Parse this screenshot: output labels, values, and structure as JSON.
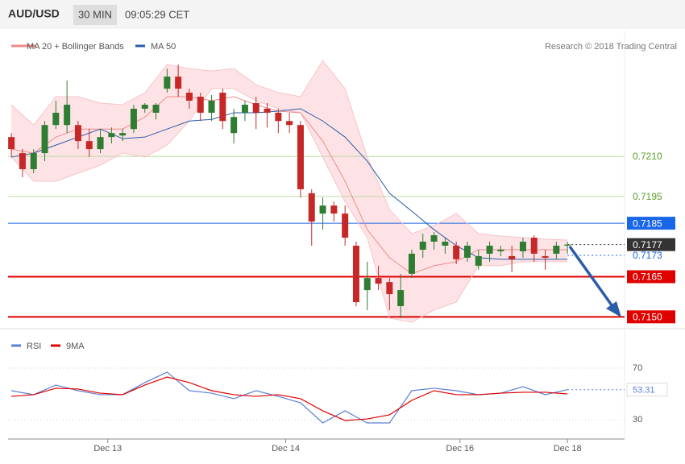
{
  "header": {
    "symbol": "AUD/USD",
    "interval": "30 MIN",
    "time": "09:05:29 CET"
  },
  "chart_data": [
    {
      "type": "candlestick",
      "attribution": "Research © 2018 Trading Central",
      "x": [
        0,
        3,
        6,
        9,
        12,
        15,
        18,
        21,
        24,
        27,
        30,
        33,
        36,
        39,
        42,
        45,
        48,
        51,
        54,
        57,
        60,
        63,
        66,
        69,
        72,
        75,
        78,
        81,
        84,
        87,
        90,
        93,
        96,
        99,
        102,
        105,
        108,
        111,
        114,
        117,
        120,
        123,
        126,
        129,
        132,
        135,
        138,
        141,
        144,
        147,
        150
      ],
      "open": [
        0.72172,
        0.72112,
        0.72052,
        0.72112,
        0.72217,
        0.72217,
        0.72217,
        0.72157,
        0.72127,
        0.72172,
        0.72178,
        0.72202,
        0.72278,
        0.72263,
        0.72353,
        0.72398,
        0.72338,
        0.72323,
        0.72263,
        0.72338,
        0.72187,
        0.72263,
        0.72299,
        0.72278,
        0.72263,
        0.72232,
        0.72217,
        0.71962,
        0.71886,
        0.71916,
        0.71886,
        0.71766,
        0.716,
        0.71645,
        0.7163,
        0.7154,
        0.71661,
        0.71751,
        0.71781,
        0.71766,
        0.71766,
        0.71721,
        0.71691,
        0.71736,
        0.71745,
        0.71727,
        0.71745,
        0.71796,
        0.71727,
        0.71736,
        0.71766
      ],
      "high": [
        0.72187,
        0.72127,
        0.72127,
        0.72232,
        0.72308,
        0.72383,
        0.72232,
        0.72202,
        0.72202,
        0.72208,
        0.72202,
        0.72293,
        0.72299,
        0.72299,
        0.72428,
        0.72443,
        0.72353,
        0.72338,
        0.72329,
        0.72353,
        0.72278,
        0.72308,
        0.72323,
        0.72299,
        0.72278,
        0.72263,
        0.72232,
        0.71977,
        0.71946,
        0.71931,
        0.71916,
        0.71781,
        0.71706,
        0.71691,
        0.71645,
        0.71661,
        0.71751,
        0.71811,
        0.71817,
        0.71796,
        0.71781,
        0.71781,
        0.71751,
        0.71781,
        0.71766,
        0.71766,
        0.71796,
        0.71805,
        0.71751,
        0.71781,
        0.71781
      ],
      "low": [
        0.72097,
        0.72022,
        0.72037,
        0.72082,
        0.72202,
        0.72187,
        0.72127,
        0.72097,
        0.72112,
        0.72148,
        0.72157,
        0.72187,
        0.72263,
        0.72238,
        0.72338,
        0.72323,
        0.72278,
        0.72232,
        0.72232,
        0.72202,
        0.72148,
        0.72232,
        0.72202,
        0.72208,
        0.72187,
        0.72187,
        0.71946,
        0.71766,
        0.71826,
        0.71856,
        0.71766,
        0.7154,
        0.71525,
        0.716,
        0.71525,
        0.71495,
        0.71645,
        0.71721,
        0.71751,
        0.71736,
        0.71697,
        0.71706,
        0.71676,
        0.71706,
        0.71727,
        0.71667,
        0.71721,
        0.71706,
        0.71676,
        0.71715,
        0.71736
      ],
      "close": [
        0.72127,
        0.72052,
        0.72112,
        0.72217,
        0.72263,
        0.72293,
        0.72157,
        0.72127,
        0.72172,
        0.72187,
        0.72187,
        0.72278,
        0.72293,
        0.72293,
        0.72398,
        0.72353,
        0.72308,
        0.72263,
        0.72308,
        0.72232,
        0.72247,
        0.72293,
        0.72263,
        0.72263,
        0.72232,
        0.72217,
        0.71977,
        0.71856,
        0.71916,
        0.71886,
        0.71796,
        0.71555,
        0.71645,
        0.71624,
        0.71585,
        0.716,
        0.71736,
        0.71781,
        0.71805,
        0.71781,
        0.71715,
        0.71766,
        0.71727,
        0.71766,
        0.71751,
        0.71715,
        0.71781,
        0.71736,
        0.71721,
        0.71766,
        0.7177
      ],
      "up_color": "#2e7d32",
      "down_color": "#c62828",
      "overlays": [
        {
          "name": "MA 20 + Bollinger Bands",
          "color": "#f08a8a",
          "band_color": "#fde3e5",
          "x": [
            0,
            6,
            12,
            18,
            24,
            30,
            36,
            42,
            48,
            54,
            60,
            66,
            72,
            78,
            84,
            90,
            96,
            102,
            108,
            114,
            120,
            126,
            132,
            138,
            144,
            150
          ],
          "values": [
            0.72127,
            0.72112,
            0.72172,
            0.72202,
            0.72202,
            0.72202,
            0.72247,
            0.72323,
            0.72323,
            0.72308,
            0.72323,
            0.72293,
            0.72269,
            0.72263,
            0.72157,
            0.72007,
            0.71826,
            0.71721,
            0.71661,
            0.71691,
            0.71706,
            0.71751,
            0.71751,
            0.71751,
            0.71751,
            0.71751
          ],
          "upper": [
            0.72293,
            0.72217,
            0.72323,
            0.72323,
            0.72299,
            0.72293,
            0.72338,
            0.72443,
            0.72428,
            0.72419,
            0.72428,
            0.72368,
            0.72338,
            0.72323,
            0.72458,
            0.72353,
            0.72097,
            0.71901,
            0.71811,
            0.71841,
            0.71886,
            0.71811,
            0.71802,
            0.71796,
            0.7179,
            0.71787
          ],
          "lower": [
            0.72097,
            0.72007,
            0.72007,
            0.72037,
            0.72067,
            0.72112,
            0.72097,
            0.72142,
            0.72232,
            0.72353,
            0.72353,
            0.72308,
            0.72278,
            0.72263,
            0.72097,
            0.71931,
            0.71796,
            0.71495,
            0.7148,
            0.71525,
            0.71555,
            0.71691,
            0.71691,
            0.71706,
            0.71706,
            0.71706
          ]
        },
        {
          "name": "MA 50",
          "color": "#2a5ca8",
          "x": [
            0,
            6,
            12,
            18,
            24,
            30,
            36,
            42,
            48,
            54,
            60,
            66,
            72,
            78,
            84,
            90,
            96,
            102,
            108,
            114,
            120,
            126,
            132,
            138,
            144,
            150
          ],
          "values": [
            0.72097,
            0.72112,
            0.72142,
            0.72172,
            0.72202,
            0.72166,
            0.72172,
            0.72202,
            0.72232,
            0.72238,
            0.72263,
            0.72263,
            0.72269,
            0.72278,
            0.72232,
            0.72172,
            0.72082,
            0.71962,
            0.71895,
            0.71826,
            0.71766,
            0.71721,
            0.71715,
            0.71715,
            0.71715,
            0.71715
          ]
        }
      ],
      "levels": [
        {
          "price": {
            "value": 0.721,
            "label": "0.7210"
          },
          "color": "#5aa02c",
          "style": "text",
          "line": "solid"
        },
        {
          "price": 0.7195,
          "color": "#5aa02c",
          "style": "text",
          "line": "solid"
        },
        {
          "price": 0.7185,
          "color": "#1a66e8",
          "style": "box",
          "line": "solid"
        },
        {
          "price": 0.7177,
          "color": "#333333",
          "style": "box",
          "line": "dotted"
        },
        {
          "price": 0.7173,
          "color": "#1a66e8",
          "style": "text",
          "line": "dotted"
        },
        {
          "price": 0.7165,
          "color": "#e00000",
          "style": "box",
          "line": "solid"
        },
        {
          "price": {
            "value": 0.715,
            "label": "0.7150"
          },
          "color": "#e00000",
          "style": "box",
          "line": "solid"
        }
      ],
      "xlim": [
        -0.9,
        165.4
      ],
      "ylim": [
        0.7146,
        0.7257
      ],
      "xticks": [
        {
          "value": 26,
          "label": "Dec 13"
        },
        {
          "value": 74,
          "label": "Dec 14"
        },
        {
          "value": 121,
          "label": "Dec 16"
        },
        {
          "value": 150,
          "label": "Dec 18"
        }
      ]
    },
    {
      "type": "line",
      "x": [
        0,
        6,
        12,
        18,
        24,
        30,
        36,
        42,
        48,
        54,
        60,
        66,
        72,
        78,
        84,
        90,
        96,
        102,
        108,
        114,
        120,
        126,
        132,
        138,
        144,
        150
      ],
      "series": [
        {
          "name": "RSI",
          "color": "#5b7fd6",
          "values": [
            52.5,
            49.4,
            56.9,
            52.5,
            49.4,
            49.4,
            58.8,
            66.9,
            52.5,
            50.6,
            46.3,
            52.5,
            48.1,
            43.1,
            27.5,
            36.9,
            27.5,
            27.5,
            52.5,
            54.4,
            52.5,
            49.4,
            50.6,
            55.6,
            49.4,
            53.31
          ]
        },
        {
          "name": "9MA",
          "color": "#e00000",
          "values": [
            48.1,
            49.4,
            54.4,
            53.8,
            50.6,
            49.4,
            56.9,
            63.1,
            58.8,
            52.5,
            49.4,
            48.1,
            49.4,
            46.3,
            36.9,
            29.4,
            30.6,
            33.8,
            45,
            52.5,
            49.4,
            49.4,
            50.6,
            51.3,
            51.3,
            50
          ]
        }
      ],
      "xlim": [
        -0.9,
        165.4
      ],
      "ylim": [
        15,
        94
      ],
      "yticks": [
        30,
        70
      ]
    }
  ]
}
